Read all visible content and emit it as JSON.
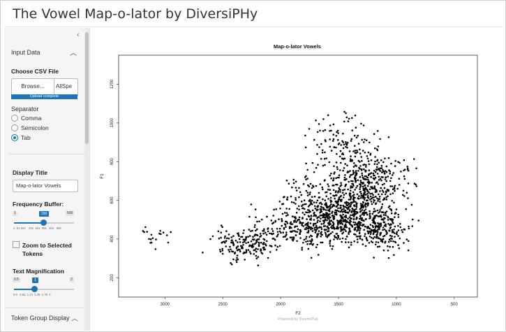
{
  "app": {
    "title": "The Vowel Map-o-lator by DiversiPHy"
  },
  "sidebar": {
    "input_panel": {
      "title": "Input Data"
    },
    "csv": {
      "label": "Choose CSV File",
      "browse_label": "Browse...",
      "file_name": "AllSpe",
      "upload_status": "Upload complete"
    },
    "separator": {
      "label": "Separator",
      "options": [
        "Comma",
        "Semicolon",
        "Tab"
      ],
      "selected": "Tab"
    },
    "display_title": {
      "label": "Display Title",
      "value": "Map-o-lator Vowels"
    },
    "frequency_buffer": {
      "label": "Frequency Buffer:",
      "min": "1",
      "max": "500",
      "value": "250",
      "fraction": 0.5,
      "ticks": [
        "1",
        "51 101",
        "",
        "201",
        "251",
        "301",
        "401",
        "",
        "500"
      ]
    },
    "zoom": {
      "label": "Zoom to Selected Tokens",
      "checked": false
    },
    "text_magnification": {
      "label": "Text Magnification",
      "min": "0.5",
      "max": "2",
      "value": "1",
      "fraction": 0.333,
      "ticks": [
        "0.6",
        "0.82",
        "1.14",
        "1.46",
        "1.78",
        "2"
      ]
    },
    "token_group_panel": {
      "title": "Token Group Display"
    }
  },
  "chart_data": {
    "type": "scatter",
    "title": "Map-o-lator Vowels",
    "xlabel": "F2",
    "ylabel": "F1",
    "xlim": [
      3400,
      300
    ],
    "ylim": [
      1350,
      100
    ],
    "x_ticks": [
      3000,
      2500,
      2000,
      1500,
      1000,
      500
    ],
    "y_ticks": [
      200,
      400,
      600,
      800,
      1000,
      1200
    ],
    "point_count_approx": 1700,
    "footer": "Powered by DiversiPHy",
    "point_color": "#000000"
  }
}
